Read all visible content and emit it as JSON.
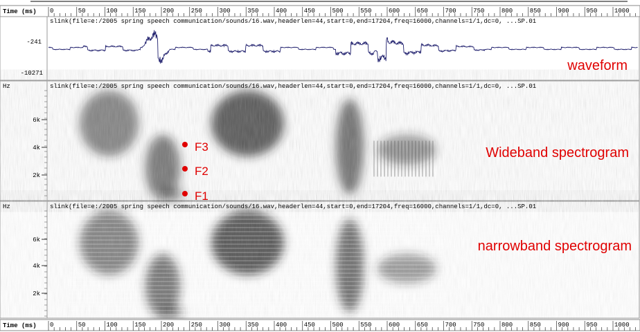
{
  "time_axis": {
    "label": "Time (ms)",
    "ticks": [
      "0",
      "50",
      "100",
      "150",
      "200",
      "250",
      "300",
      "350",
      "400",
      "450",
      "500",
      "550",
      "600",
      "650",
      "700",
      "750",
      "800",
      "850",
      "900",
      "950",
      "1000"
    ]
  },
  "panels": [
    {
      "header": "slink(file=e:/2005 spring speech communication/sounds/16.wav,headerlen=44,start=0,end=17204,freq=16000,channels=1/1,dc=0, ...SP.01",
      "y_labels": [
        "-241",
        "-10271"
      ],
      "annotation": "waveform"
    },
    {
      "unit": "Hz",
      "header": "slink(file=e:/2005 spring speech communication/sounds/16.wav,headerlen=44,start=0,end=17204,freq=16000,channels=1/1,dc=0, ...SP.01",
      "y_labels": [
        "6k",
        "4k",
        "2k"
      ],
      "annotation": "Wideband spectrogram",
      "formants": [
        "F3",
        "F2",
        "F1"
      ]
    },
    {
      "unit": "Hz",
      "header": "slink(file=e:/2005 spring speech communication/sounds/16.wav,headerlen=44,start=0,end=17204,freq=16000,channels=1/1,dc=0, ...SP.01",
      "y_labels": [
        "6k",
        "4k",
        "2k"
      ],
      "annotation": "narrowband spectrogram"
    }
  ],
  "bottom_axis": {
    "label": "Time (ms)",
    "ticks": [
      "0",
      "50",
      "100",
      "150",
      "200",
      "250",
      "300",
      "350",
      "400",
      "450",
      "500",
      "550",
      "600",
      "650",
      "700",
      "750",
      "800",
      "850",
      "900",
      "950",
      "1000"
    ]
  }
}
